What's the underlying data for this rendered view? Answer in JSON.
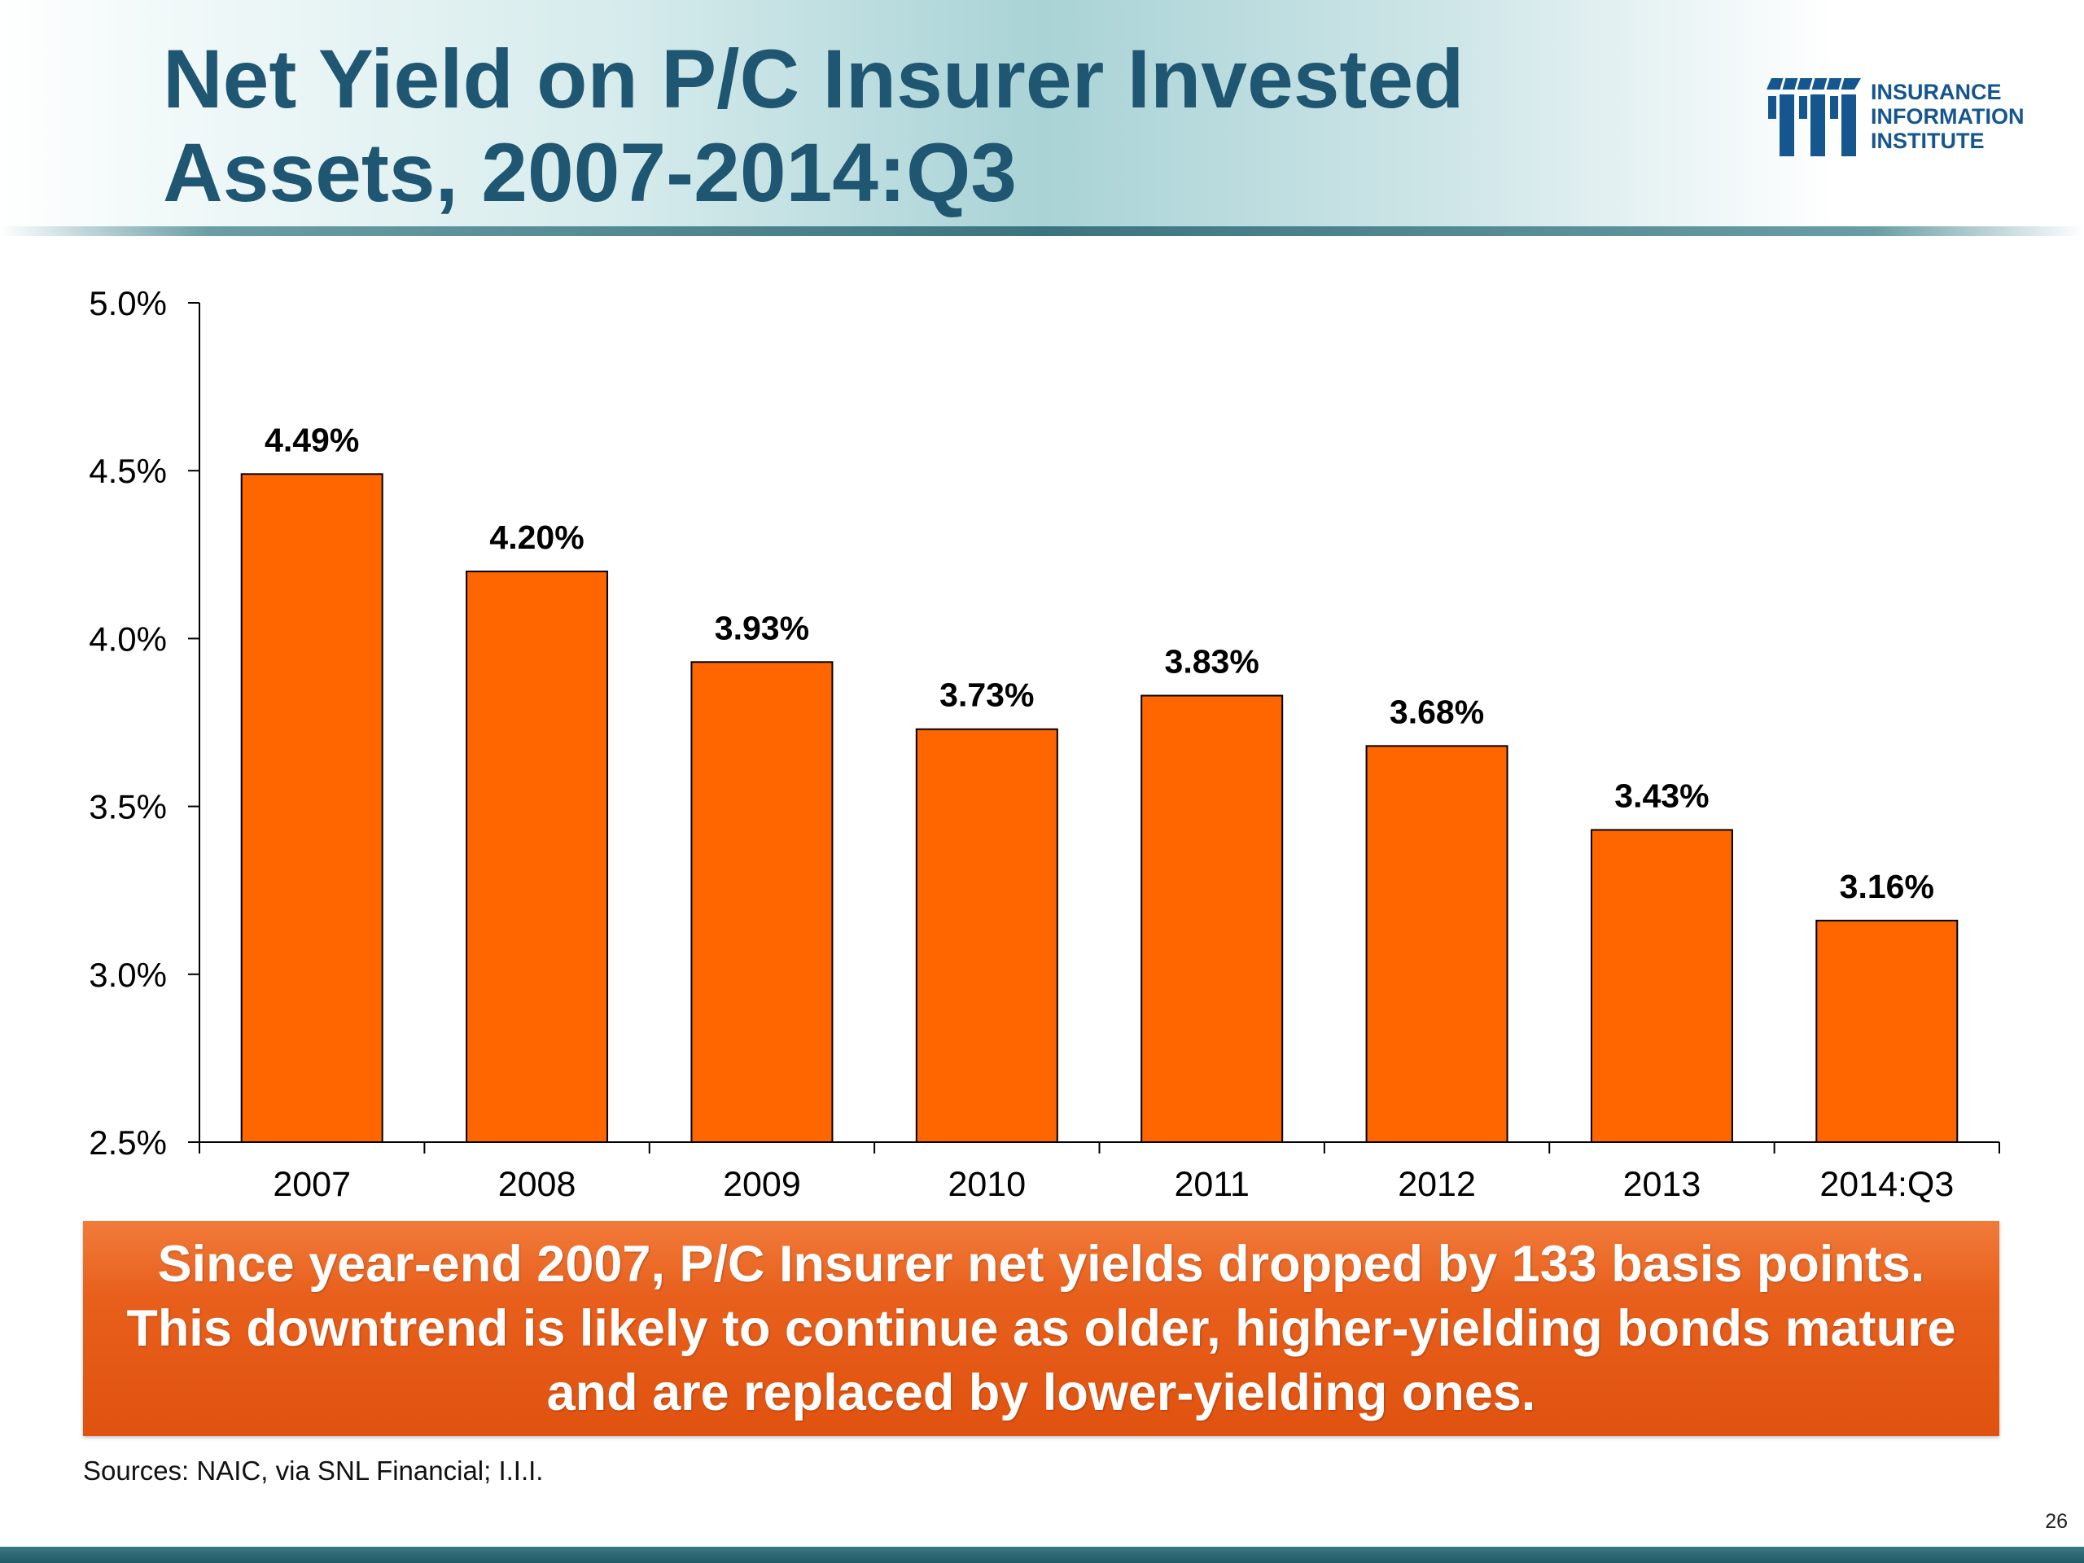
{
  "slide": {
    "title": "Net Yield on P/C Insurer Invested Assets, 2007-2014:Q3",
    "logo_text": "INSURANCE\nINFORMATION\nINSTITUTE",
    "callout": "Since year-end 2007, P/C Insurer net yields dropped by 133 basis points. This downtrend is likely to continue as older, higher-yielding bonds mature and are replaced by lower-yielding ones.",
    "source": "Sources: NAIC, via SNL Financial; I.I.I.",
    "page_number": "26"
  },
  "colors": {
    "title": "#1f5773",
    "bar": "#ff6600",
    "callout": "#e85f1c",
    "logo": "#16568e"
  },
  "chart_data": {
    "type": "bar",
    "title": "",
    "xlabel": "",
    "ylabel": "",
    "categories": [
      "2007",
      "2008",
      "2009",
      "2010",
      "2011",
      "2012",
      "2013",
      "2014:Q3"
    ],
    "values": [
      4.49,
      4.2,
      3.93,
      3.73,
      3.83,
      3.68,
      3.43,
      3.16
    ],
    "data_labels": [
      "4.49%",
      "4.20%",
      "3.93%",
      "3.73%",
      "3.83%",
      "3.68%",
      "3.43%",
      "3.16%"
    ],
    "ylim": [
      2.5,
      5.0
    ],
    "yticks": [
      2.5,
      3.0,
      3.5,
      4.0,
      4.5,
      5.0
    ],
    "ytick_labels": [
      "2.5%",
      "3.0%",
      "3.5%",
      "4.0%",
      "4.5%",
      "5.0%"
    ],
    "grid": false,
    "legend": "none"
  }
}
